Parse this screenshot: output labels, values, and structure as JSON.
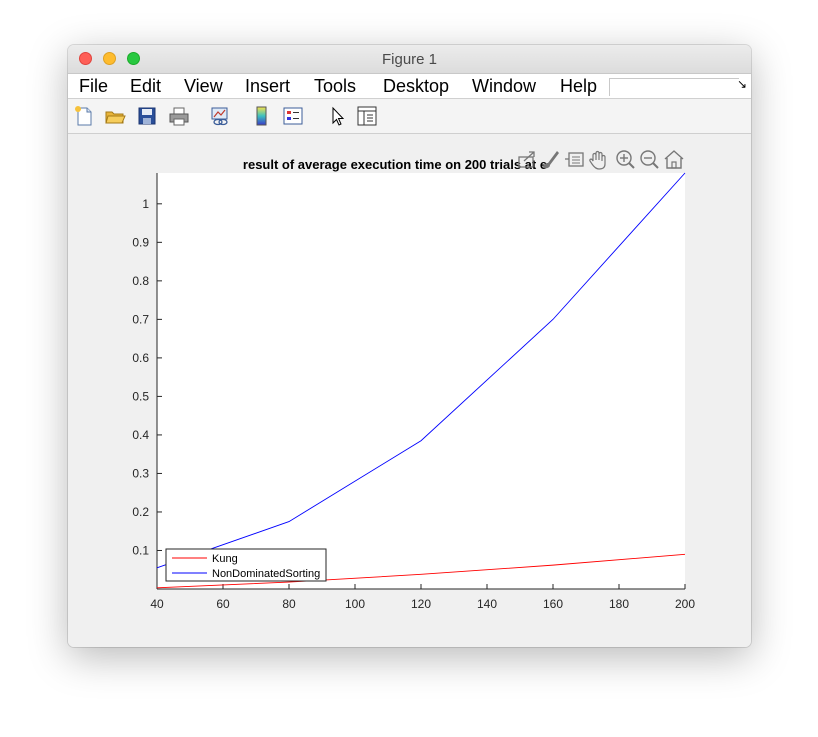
{
  "window": {
    "title": "Figure 1"
  },
  "menu": [
    "File",
    "Edit",
    "View",
    "Insert",
    "Tools",
    "Desktop",
    "Window",
    "Help"
  ],
  "toolbar_icons": [
    "new-file-icon",
    "open-folder-icon",
    "save-icon",
    "print-icon",
    "link-plot-icon",
    "colorbar-icon",
    "legend-icon",
    "pointer-icon",
    "property-inspector-icon"
  ],
  "axes_toolbar_icons": [
    "export-icon",
    "brush-icon",
    "data-tips-icon",
    "pan-icon",
    "zoom-in-icon",
    "zoom-out-icon",
    "home-icon"
  ],
  "chart_data": {
    "type": "line",
    "title": "result of average execution time on 200 trials at e",
    "xlabel": "",
    "ylabel": "",
    "x": [
      40,
      80,
      120,
      160,
      200
    ],
    "xlim": [
      40,
      200
    ],
    "ylim": [
      0,
      1.08
    ],
    "xticks": [
      40,
      60,
      80,
      100,
      120,
      140,
      160,
      180,
      200
    ],
    "yticks": [
      0.1,
      0.2,
      0.3,
      0.4,
      0.5,
      0.6,
      0.7,
      0.8,
      0.9,
      1
    ],
    "ytick_labels": [
      "0.1",
      "0.2",
      "0.3",
      "0.4",
      "0.5",
      "0.6",
      "0.7",
      "0.8",
      "0.9",
      "1"
    ],
    "grid": false,
    "legend_position": "bottom-left",
    "series": [
      {
        "name": "Kung",
        "color": "#ff0000",
        "values": [
          0.003,
          0.018,
          0.038,
          0.062,
          0.09
        ]
      },
      {
        "name": "NonDominatedSorting",
        "color": "#0000ff",
        "values": [
          0.055,
          0.175,
          0.385,
          0.7,
          1.08
        ]
      }
    ]
  }
}
